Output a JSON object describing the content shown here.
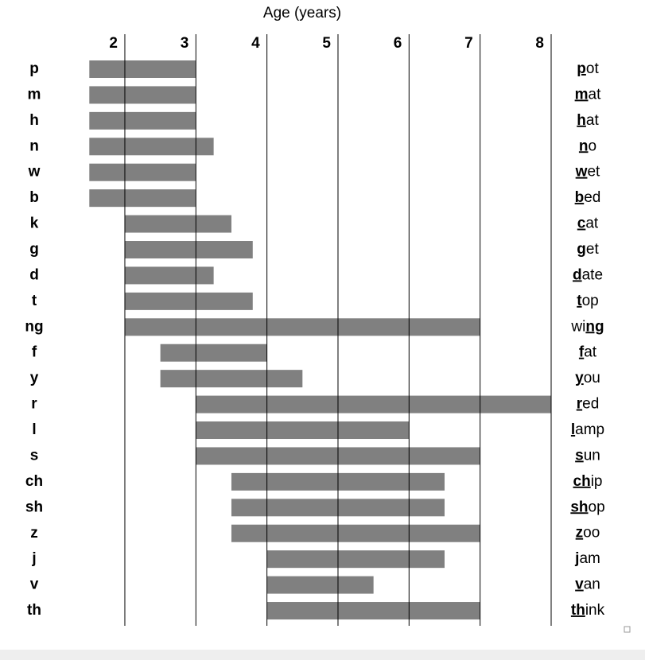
{
  "chart_data": {
    "type": "range-bar",
    "xlabel": "Age (years)",
    "categories": [
      "p",
      "m",
      "h",
      "n",
      "w",
      "b",
      "k",
      "g",
      "d",
      "t",
      "ng",
      "f",
      "y",
      "r",
      "l",
      "s",
      "ch",
      "sh",
      "z",
      "j",
      "v",
      "th"
    ],
    "start": [
      1.5,
      1.5,
      1.5,
      1.5,
      1.5,
      1.5,
      2,
      2,
      2,
      2,
      2,
      2.5,
      2.5,
      3,
      3,
      3,
      3.5,
      3.5,
      3.5,
      4,
      4,
      4
    ],
    "end": [
      3,
      3,
      3,
      3.25,
      3,
      3,
      3.5,
      3.8,
      3.25,
      3.8,
      7,
      4,
      4.5,
      8,
      6,
      7,
      6.5,
      6.5,
      7,
      6.5,
      5.5,
      7
    ],
    "words": [
      {
        "u": "p",
        "post": "ot"
      },
      {
        "u": "m",
        "post": "at"
      },
      {
        "u": "h",
        "post": "at"
      },
      {
        "u": "n",
        "post": "o"
      },
      {
        "u": "w",
        "post": "et"
      },
      {
        "u": "b",
        "post": "ed"
      },
      {
        "u": "c",
        "post": "at"
      },
      {
        "u": "g",
        "post": "et"
      },
      {
        "u": "d",
        "post": "ate"
      },
      {
        "u": "t",
        "post": "op"
      },
      {
        "pre": "wi",
        "u": "ng"
      },
      {
        "u": "f",
        "post": "at"
      },
      {
        "u": "y",
        "post": "ou"
      },
      {
        "u": "r",
        "post": "ed"
      },
      {
        "u": "l",
        "post": "amp"
      },
      {
        "u": "s",
        "post": "un"
      },
      {
        "u": "ch",
        "post": "ip"
      },
      {
        "u": "sh",
        "post": "op"
      },
      {
        "u": "z",
        "post": "oo"
      },
      {
        "u": "j",
        "post": "am"
      },
      {
        "u": "v",
        "post": "an"
      },
      {
        "u": "th",
        "post": "ink"
      }
    ],
    "color": "#808080",
    "xlim": [
      1.5,
      8
    ],
    "xticks": [
      2,
      3,
      4,
      5,
      6,
      7,
      8
    ],
    "grid": true
  }
}
